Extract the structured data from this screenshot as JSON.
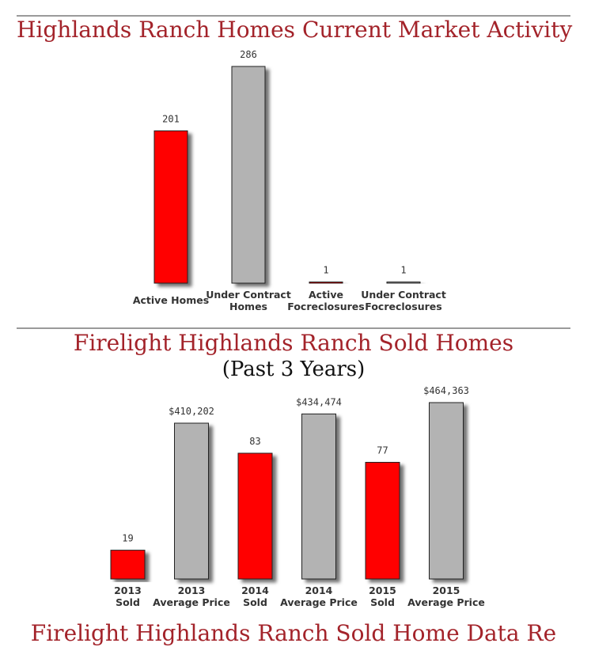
{
  "colors": {
    "title": "#a3232a",
    "rule": "#9a9a9a",
    "red_bar": "#ff0000",
    "gray_bar": "#b3b3b3"
  },
  "chart_data": [
    {
      "type": "bar",
      "title": "Highlands Ranch Homes Current Market Activity",
      "categories": [
        [
          "Active Homes"
        ],
        [
          "Under Contract",
          "Homes"
        ],
        [
          "Active",
          "Focreclosures"
        ],
        [
          "Under Contract",
          "Focreclosures"
        ]
      ],
      "values": [
        201,
        286,
        1,
        1
      ],
      "value_labels": [
        "201",
        "286",
        "1",
        "1"
      ],
      "bar_colors": [
        "#ff0000",
        "#b3b3b3",
        "#ff0000",
        "#b3b3b3"
      ],
      "ylim": [
        0,
        286
      ],
      "grid": false
    },
    {
      "type": "bar",
      "title": "Firelight Highlands Ranch Sold Homes",
      "subtitle": "(Past 3 Years)",
      "categories": [
        [
          "2013",
          "Sold"
        ],
        [
          "2013",
          "Average Price"
        ],
        [
          "2014",
          "Sold"
        ],
        [
          "2014",
          "Average Price"
        ],
        [
          "2015",
          "Sold"
        ],
        [
          "2015",
          "Average Price"
        ]
      ],
      "values": [
        19,
        410202,
        83,
        434474,
        77,
        464363
      ],
      "value_labels": [
        "19",
        "$410,202",
        "83",
        "$434,474",
        "77",
        "$464,363"
      ],
      "bar_colors": [
        "#ff0000",
        "#b3b3b3",
        "#ff0000",
        "#b3b3b3",
        "#ff0000",
        "#b3b3b3"
      ],
      "grid": false
    }
  ],
  "cutoff_title": "Firelight Highlands Ranch Sold Home Data Re"
}
